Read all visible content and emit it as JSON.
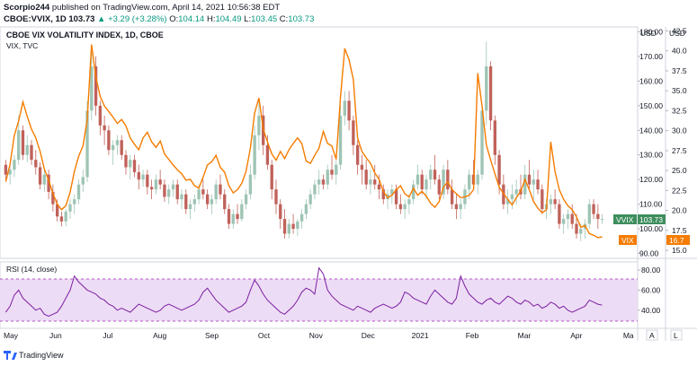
{
  "header": {
    "author": "Scorpio244",
    "published_text": "published on TradingView.com, April 14, 2021 10:56:38 EDT",
    "symbol": "CBOE:VVIX, 1D",
    "last": "103.73",
    "change_arrow": "▲",
    "change": "+3.29 (+3.28%)",
    "o_label": "O:",
    "o": "104.14",
    "h_label": "H:",
    "h": "104.49",
    "l_label": "L:",
    "l": "103.45",
    "c_label": "C:",
    "c": "103.73"
  },
  "pane": {
    "title": "CBOE VIX VOLATILITY INDEX, 1D, CBOE",
    "subtitle": "VIX, TVC",
    "currency_left": "USD",
    "currency_right": "USD",
    "rsi_label": "RSI (14, close)",
    "log_button": "L",
    "auto_button": "A"
  },
  "colors": {
    "up": "#089981",
    "down": "#d32f2f",
    "up_candle": "#9ec4b4",
    "down_candle": "#c0615a",
    "vix_line": "#f57c00",
    "rsi_line": "#7b1fa2",
    "rsi_band": "#eddcf5",
    "vvix_tag": "#3e8e5e"
  },
  "branding": {
    "logo_text": "TradingView"
  },
  "chart_data": {
    "type": "candlestick",
    "series": [
      {
        "name": "VVIX",
        "axis": "vvix",
        "last_value": "103.73"
      },
      {
        "name": "VIX",
        "axis": "vix",
        "last_value": "16.7"
      }
    ],
    "month_labels": [
      "May",
      "Jun",
      "Jul",
      "Aug",
      "Sep",
      "Oct",
      "Nov",
      "Dec",
      "2021",
      "Feb",
      "Mar",
      "Apr",
      "Ma"
    ],
    "vvix_axis_ticks": [
      "180.00",
      "170.00",
      "160.00",
      "150.00",
      "140.00",
      "130.00",
      "120.00",
      "110.00",
      "100.00",
      "90.00"
    ],
    "vix_axis_ticks": [
      "42.5",
      "40.0",
      "37.5",
      "35.0",
      "32.5",
      "30.0",
      "27.5",
      "25.0",
      "22.5",
      "20.0",
      "17.5",
      "15.0"
    ],
    "rsi_axis_ticks": [
      "80.00",
      "60.00",
      "40.00"
    ],
    "rsi_bands": [
      30,
      70
    ],
    "vvix_ylim": [
      88,
      182
    ],
    "vix_ylim": [
      14.0,
      43.0
    ],
    "rsi_ylim": [
      22,
      88
    ],
    "vvix_candles": [
      [
        126,
        128,
        120,
        122
      ],
      [
        122,
        126,
        118,
        124
      ],
      [
        124,
        130,
        121,
        128
      ],
      [
        128,
        146,
        126,
        140
      ],
      [
        140,
        142,
        128,
        130
      ],
      [
        130,
        138,
        127,
        134
      ],
      [
        134,
        136,
        126,
        128
      ],
      [
        128,
        132,
        122,
        125
      ],
      [
        125,
        127,
        116,
        118
      ],
      [
        118,
        124,
        115,
        122
      ],
      [
        122,
        124,
        112,
        115
      ],
      [
        115,
        118,
        107,
        110
      ],
      [
        110,
        112,
        103,
        105
      ],
      [
        105,
        107,
        101,
        103
      ],
      [
        103,
        108,
        101,
        107
      ],
      [
        107,
        112,
        104,
        110
      ],
      [
        110,
        114,
        106,
        112
      ],
      [
        112,
        120,
        110,
        118
      ],
      [
        118,
        124,
        115,
        121
      ],
      [
        121,
        152,
        119,
        148
      ],
      [
        148,
        172,
        144,
        166
      ],
      [
        166,
        170,
        146,
        150
      ],
      [
        150,
        152,
        138,
        142
      ],
      [
        142,
        146,
        134,
        140
      ],
      [
        140,
        142,
        130,
        132
      ],
      [
        132,
        136,
        126,
        134
      ],
      [
        134,
        138,
        130,
        136
      ],
      [
        136,
        138,
        128,
        130
      ],
      [
        130,
        132,
        122,
        125
      ],
      [
        125,
        130,
        120,
        128
      ],
      [
        128,
        130,
        121,
        123
      ],
      [
        123,
        126,
        116,
        120
      ],
      [
        120,
        124,
        117,
        122
      ],
      [
        122,
        124,
        114,
        117
      ],
      [
        117,
        120,
        112,
        116
      ],
      [
        116,
        122,
        114,
        120
      ],
      [
        120,
        124,
        116,
        118
      ],
      [
        118,
        120,
        111,
        113
      ],
      [
        113,
        118,
        110,
        116
      ],
      [
        116,
        120,
        113,
        118
      ],
      [
        118,
        120,
        110,
        112
      ],
      [
        112,
        116,
        108,
        114
      ],
      [
        114,
        116,
        106,
        108
      ],
      [
        108,
        112,
        104,
        110
      ],
      [
        110,
        114,
        107,
        112
      ],
      [
        112,
        118,
        110,
        116
      ],
      [
        116,
        120,
        112,
        114
      ],
      [
        114,
        116,
        108,
        110
      ],
      [
        110,
        114,
        106,
        112
      ],
      [
        112,
        120,
        110,
        118
      ],
      [
        118,
        122,
        112,
        114
      ],
      [
        114,
        116,
        106,
        108
      ],
      [
        108,
        110,
        100,
        102
      ],
      [
        102,
        108,
        100,
        106
      ],
      [
        106,
        110,
        102,
        104
      ],
      [
        104,
        112,
        103,
        110
      ],
      [
        110,
        116,
        108,
        114
      ],
      [
        114,
        126,
        112,
        122
      ],
      [
        122,
        142,
        120,
        138
      ],
      [
        138,
        152,
        132,
        146
      ],
      [
        146,
        150,
        130,
        134
      ],
      [
        134,
        138,
        124,
        126
      ],
      [
        126,
        128,
        112,
        116
      ],
      [
        116,
        120,
        106,
        110
      ],
      [
        110,
        112,
        100,
        104
      ],
      [
        104,
        108,
        96,
        98
      ],
      [
        98,
        104,
        96,
        102
      ],
      [
        102,
        106,
        98,
        100
      ],
      [
        100,
        104,
        97,
        103
      ],
      [
        103,
        108,
        100,
        106
      ],
      [
        106,
        112,
        104,
        110
      ],
      [
        110,
        116,
        108,
        114
      ],
      [
        114,
        120,
        112,
        118
      ],
      [
        118,
        124,
        114,
        120
      ],
      [
        120,
        122,
        116,
        118
      ],
      [
        118,
        126,
        116,
        124
      ],
      [
        124,
        130,
        120,
        122
      ],
      [
        122,
        128,
        118,
        126
      ],
      [
        126,
        150,
        124,
        146
      ],
      [
        146,
        156,
        142,
        152
      ],
      [
        152,
        156,
        140,
        144
      ],
      [
        144,
        146,
        130,
        134
      ],
      [
        134,
        136,
        122,
        126
      ],
      [
        126,
        130,
        118,
        124
      ],
      [
        124,
        128,
        116,
        118
      ],
      [
        118,
        124,
        114,
        120
      ],
      [
        120,
        126,
        116,
        118
      ],
      [
        118,
        122,
        112,
        116
      ],
      [
        116,
        118,
        110,
        112
      ],
      [
        112,
        116,
        108,
        114
      ],
      [
        114,
        118,
        110,
        116
      ],
      [
        116,
        118,
        108,
        110
      ],
      [
        110,
        114,
        106,
        108
      ],
      [
        108,
        112,
        104,
        110
      ],
      [
        110,
        114,
        106,
        112
      ],
      [
        112,
        120,
        110,
        118
      ],
      [
        118,
        126,
        116,
        122
      ],
      [
        122,
        124,
        114,
        116
      ],
      [
        116,
        122,
        112,
        120
      ],
      [
        120,
        126,
        116,
        124
      ],
      [
        124,
        130,
        118,
        120
      ],
      [
        120,
        122,
        112,
        114
      ],
      [
        114,
        126,
        112,
        124
      ],
      [
        124,
        128,
        114,
        116
      ],
      [
        116,
        120,
        108,
        110
      ],
      [
        110,
        114,
        104,
        108
      ],
      [
        108,
        112,
        104,
        110
      ],
      [
        110,
        118,
        108,
        116
      ],
      [
        116,
        124,
        112,
        122
      ],
      [
        122,
        128,
        116,
        118
      ],
      [
        118,
        124,
        114,
        122
      ],
      [
        122,
        150,
        120,
        148
      ],
      [
        148,
        176,
        142,
        166
      ],
      [
        166,
        168,
        140,
        144
      ],
      [
        144,
        146,
        126,
        130
      ],
      [
        130,
        132,
        114,
        118
      ],
      [
        118,
        122,
        108,
        110
      ],
      [
        110,
        116,
        106,
        112
      ],
      [
        112,
        118,
        108,
        114
      ],
      [
        114,
        120,
        110,
        116
      ],
      [
        116,
        122,
        112,
        114
      ],
      [
        114,
        126,
        112,
        122
      ],
      [
        122,
        128,
        116,
        118
      ],
      [
        118,
        124,
        112,
        120
      ],
      [
        120,
        124,
        114,
        116
      ],
      [
        116,
        118,
        106,
        108
      ],
      [
        108,
        112,
        104,
        110
      ],
      [
        110,
        114,
        106,
        112
      ],
      [
        112,
        116,
        108,
        110
      ],
      [
        110,
        112,
        100,
        102
      ],
      [
        102,
        106,
        98,
        104
      ],
      [
        104,
        108,
        100,
        106
      ],
      [
        106,
        110,
        100,
        102
      ],
      [
        102,
        106,
        96,
        98
      ],
      [
        98,
        102,
        95,
        100
      ],
      [
        100,
        104,
        96,
        102
      ],
      [
        102,
        112,
        100,
        110
      ],
      [
        110,
        112,
        104,
        106
      ],
      [
        106,
        110,
        100,
        104
      ],
      [
        104,
        106,
        102,
        104
      ]
    ],
    "vix_close": [
      23.6,
      25.8,
      29.4,
      31.2,
      33.6,
      31.8,
      30.2,
      29.1,
      27.4,
      25.2,
      23.8,
      22.1,
      20.8,
      20.1,
      20.6,
      22.3,
      24.9,
      26.8,
      28.1,
      31.4,
      40.8,
      36.7,
      34.3,
      33.1,
      32.4,
      31.7,
      30.9,
      31.4,
      30.6,
      29.1,
      28.3,
      27.6,
      29.1,
      29.8,
      28.6,
      27.9,
      28.7,
      27.1,
      26.4,
      25.7,
      25.1,
      24.6,
      23.8,
      23.9,
      23.1,
      22.8,
      24.2,
      25.7,
      26.1,
      26.9,
      25.4,
      24.8,
      23.1,
      22.2,
      22.6,
      23.4,
      24.9,
      27.8,
      32.2,
      34.1,
      30.2,
      28.6,
      27.1,
      26.3,
      27.4,
      26.5,
      27.6,
      28.4,
      29.1,
      28.4,
      26.2,
      25.9,
      26.9,
      27.8,
      29.9,
      28.4,
      28.1,
      26.4,
      34.2,
      40.3,
      38.9,
      36.4,
      29.1,
      27.4,
      26.6,
      25.9,
      24.7,
      23.9,
      22.4,
      21.6,
      21.9,
      22.6,
      23.1,
      22.1,
      21.7,
      22.8,
      21.9,
      22.4,
      21.8,
      20.9,
      20.4,
      21.1,
      22.9,
      23.6,
      22.6,
      22.1,
      21.6,
      21.7,
      21.9,
      22.6,
      37.2,
      33.1,
      28.2,
      26.3,
      24.6,
      22.9,
      22.1,
      21.4,
      20.7,
      21.6,
      22.4,
      23.9,
      22.6,
      21.1,
      20.3,
      19.7,
      20.1,
      28.6,
      24.9,
      22.6,
      21.4,
      20.6,
      20.1,
      19.2,
      17.9,
      18.1,
      17.1,
      16.9,
      16.6,
      16.7
    ],
    "rsi": [
      38,
      44,
      55,
      60,
      52,
      48,
      44,
      40,
      42,
      36,
      34,
      36,
      38,
      44,
      52,
      60,
      74,
      68,
      64,
      60,
      58,
      56,
      52,
      50,
      46,
      44,
      40,
      42,
      40,
      38,
      42,
      46,
      44,
      42,
      40,
      38,
      40,
      44,
      46,
      44,
      42,
      40,
      42,
      44,
      46,
      50,
      58,
      62,
      56,
      50,
      46,
      42,
      38,
      40,
      42,
      44,
      48,
      60,
      70,
      64,
      56,
      50,
      46,
      42,
      38,
      36,
      40,
      44,
      50,
      58,
      62,
      60,
      56,
      82,
      76,
      60,
      54,
      50,
      46,
      44,
      42,
      40,
      44,
      42,
      40,
      38,
      42,
      44,
      46,
      44,
      42,
      44,
      48,
      58,
      56,
      52,
      50,
      48,
      46,
      54,
      60,
      56,
      52,
      48,
      46,
      52,
      74,
      64,
      56,
      52,
      48,
      46,
      50,
      52,
      48,
      46,
      50,
      54,
      52,
      48,
      46,
      50,
      48,
      44,
      46,
      42,
      44,
      48,
      46,
      42,
      44,
      40,
      38,
      40,
      42,
      44,
      50,
      48,
      46,
      45
    ]
  }
}
